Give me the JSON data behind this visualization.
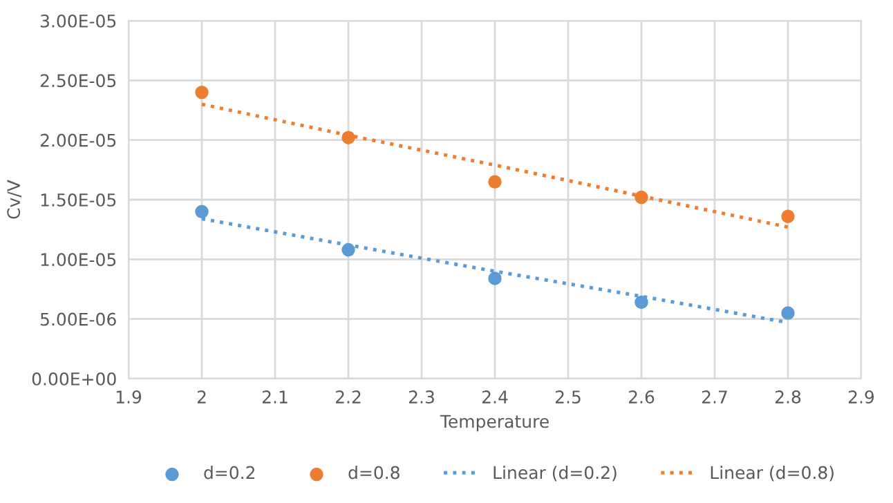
{
  "chart_data": {
    "type": "scatter",
    "xlabel": "Temperature",
    "ylabel": "Cv/V",
    "xlim": [
      1.9,
      2.9
    ],
    "xticks": [
      1.9,
      2,
      2.1,
      2.2,
      2.3,
      2.4,
      2.5,
      2.6,
      2.7,
      2.8,
      2.9
    ],
    "ylim": [
      0,
      3e-05
    ],
    "yticks": [
      {
        "value": 0,
        "label": "0.00E+00"
      },
      {
        "value": 5e-06,
        "label": "5.00E-06"
      },
      {
        "value": 1e-05,
        "label": "1.00E-05"
      },
      {
        "value": 1.5e-05,
        "label": "1.50E-05"
      },
      {
        "value": 2e-05,
        "label": "2.00E-05"
      },
      {
        "value": 2.5e-05,
        "label": "2.50E-05"
      },
      {
        "value": 3e-05,
        "label": "3.00E-05"
      }
    ],
    "grid": true,
    "legend": "bottom",
    "x": [
      2,
      2.2,
      2.4,
      2.6,
      2.8
    ],
    "series": [
      {
        "name": "d=0.2",
        "color": "#5b9bd5",
        "marker": "circle",
        "values": [
          1.4e-05,
          1.08e-05,
          8.4e-06,
          6.4e-06,
          5.5e-06
        ]
      },
      {
        "name": "d=0.8",
        "color": "#ed7d31",
        "marker": "circle",
        "values": [
          2.4e-05,
          2.02e-05,
          1.65e-05,
          1.52e-05,
          1.36e-05
        ]
      },
      {
        "name": "Linear (d=0.2)",
        "type": "line",
        "line_style": "dotted",
        "marker": "none",
        "color": "#5b9bd5",
        "values": [
          1.34e-05,
          1.12e-05,
          9e-06,
          6.9e-06,
          4.7e-06
        ]
      },
      {
        "name": "Linear (d=0.8)",
        "type": "line",
        "line_style": "dotted",
        "marker": "none",
        "color": "#ed7d31",
        "values": [
          2.3e-05,
          2.04e-05,
          1.79e-05,
          1.53e-05,
          1.27e-05
        ]
      }
    ]
  }
}
